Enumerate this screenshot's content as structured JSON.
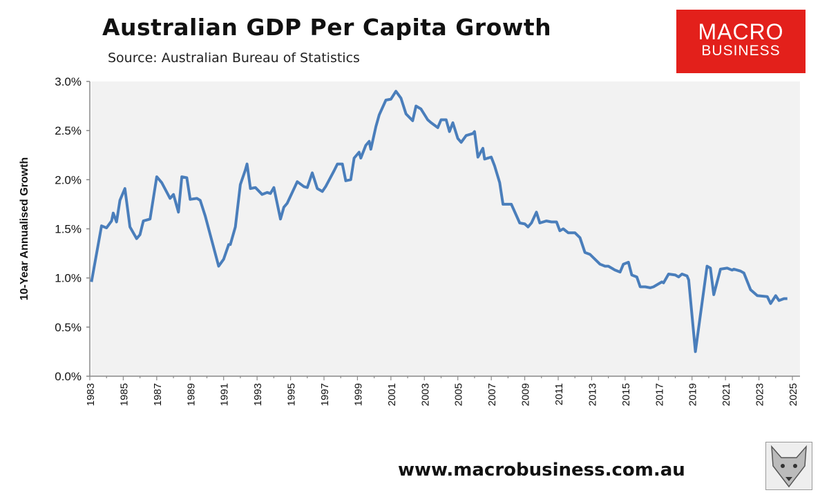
{
  "header": {
    "title": "Australian GDP Per Capita Growth",
    "source": "Source: Australian Bureau of Statistics"
  },
  "logo": {
    "line1": "MACRO",
    "line2": "BUSINESS",
    "color": "#e3201b"
  },
  "footer": {
    "url": "www.macrobusiness.com.au"
  },
  "chart_data": {
    "type": "line",
    "title": "Australian GDP Per Capita Growth",
    "xlabel": "",
    "ylabel": "10-Year Annualised Growth",
    "xlim": [
      1983,
      2025
    ],
    "ylim": [
      0,
      3.0
    ],
    "y_ticks": [
      "0.0%",
      "0.5%",
      "1.0%",
      "1.5%",
      "2.0%",
      "2.5%",
      "3.0%"
    ],
    "x_ticks": [
      "1983",
      "1985",
      "1987",
      "1989",
      "1991",
      "1993",
      "1995",
      "1997",
      "1999",
      "2001",
      "2003",
      "2005",
      "2007",
      "2009",
      "2011",
      "2013",
      "2015",
      "2017",
      "2019",
      "2021",
      "2023",
      "2025"
    ],
    "grid": false,
    "plot_background": "#f2f2f2",
    "line_color": "#4a7ebb",
    "series": [
      {
        "x": [
          1983.1,
          1983.7,
          1984.0,
          1984.3,
          1984.4,
          1984.6,
          1984.8,
          1985.1,
          1985.4,
          1985.8,
          1986.0,
          1986.2,
          1986.6,
          1987.0,
          1987.3,
          1987.8,
          1988.0,
          1988.3,
          1988.5,
          1988.8,
          1989.0,
          1989.4,
          1989.6,
          1989.9,
          1990.7,
          1991.0,
          1991.3,
          1991.4,
          1991.7,
          1992.0,
          1992.3,
          1992.4,
          1992.6,
          1992.9,
          1993.3,
          1993.6,
          1993.8,
          1994.0,
          1994.4,
          1994.6,
          1994.8,
          1995.4,
          1995.8,
          1996.0,
          1996.3,
          1996.6,
          1996.9,
          1997.1,
          1997.6,
          1997.8,
          1998.1,
          1998.3,
          1998.6,
          1998.8,
          1999.1,
          1999.2,
          1999.5,
          1999.7,
          1999.8,
          2000.1,
          2000.3,
          2000.7,
          2001.0,
          2001.3,
          2001.6,
          2001.9,
          2002.3,
          2002.5,
          2002.8,
          2003.2,
          2003.4,
          2003.8,
          2004.0,
          2004.3,
          2004.5,
          2004.7,
          2005.0,
          2005.2,
          2005.5,
          2005.9,
          2006.0,
          2006.2,
          2006.5,
          2006.6,
          2007.0,
          2007.2,
          2007.5,
          2007.7,
          2008.2,
          2008.7,
          2009.0,
          2009.2,
          2009.4,
          2009.7,
          2009.9,
          2010.3,
          2010.6,
          2010.9,
          2011.1,
          2011.3,
          2011.6,
          2012.0,
          2012.3,
          2012.6,
          2012.9,
          2013.5,
          2013.8,
          2014.0,
          2014.4,
          2014.7,
          2014.9,
          2015.2,
          2015.4,
          2015.7,
          2015.9,
          2016.2,
          2016.5,
          2016.7,
          2017.2,
          2017.3,
          2017.6,
          2018.0,
          2018.2,
          2018.4,
          2018.7,
          2018.8,
          2019.2,
          2019.9,
          2020.1,
          2020.3,
          2020.7,
          2021.1,
          2021.4,
          2021.5,
          2021.9,
          2022.1,
          2022.5,
          2022.9,
          2023.5,
          2023.7,
          2024.0,
          2024.2,
          2024.5,
          2024.7
        ],
        "y": [
          0.96,
          1.53,
          1.51,
          1.58,
          1.66,
          1.57,
          1.79,
          1.91,
          1.52,
          1.4,
          1.44,
          1.58,
          1.6,
          2.03,
          1.97,
          1.81,
          1.85,
          1.67,
          2.03,
          2.02,
          1.8,
          1.81,
          1.79,
          1.63,
          1.12,
          1.19,
          1.34,
          1.34,
          1.52,
          1.95,
          2.1,
          2.16,
          1.91,
          1.92,
          1.85,
          1.87,
          1.86,
          1.92,
          1.6,
          1.72,
          1.76,
          1.98,
          1.93,
          1.92,
          2.07,
          1.91,
          1.88,
          1.93,
          2.09,
          2.16,
          2.16,
          1.99,
          2.0,
          2.22,
          2.28,
          2.22,
          2.35,
          2.39,
          2.31,
          2.54,
          2.66,
          2.81,
          2.82,
          2.9,
          2.83,
          2.67,
          2.6,
          2.75,
          2.72,
          2.61,
          2.58,
          2.53,
          2.61,
          2.61,
          2.49,
          2.58,
          2.42,
          2.38,
          2.45,
          2.47,
          2.49,
          2.23,
          2.32,
          2.21,
          2.23,
          2.14,
          1.97,
          1.75,
          1.75,
          1.56,
          1.55,
          1.52,
          1.56,
          1.67,
          1.56,
          1.58,
          1.57,
          1.57,
          1.48,
          1.5,
          1.46,
          1.46,
          1.41,
          1.26,
          1.24,
          1.14,
          1.12,
          1.12,
          1.08,
          1.06,
          1.14,
          1.16,
          1.03,
          1.01,
          0.91,
          0.91,
          0.9,
          0.91,
          0.96,
          0.95,
          1.04,
          1.03,
          1.01,
          1.04,
          1.02,
          0.98,
          0.25,
          1.12,
          1.1,
          0.83,
          1.09,
          1.1,
          1.08,
          1.09,
          1.07,
          1.05,
          0.88,
          0.82,
          0.81,
          0.74,
          0.82,
          0.77,
          0.79,
          0.79
        ]
      }
    ]
  }
}
